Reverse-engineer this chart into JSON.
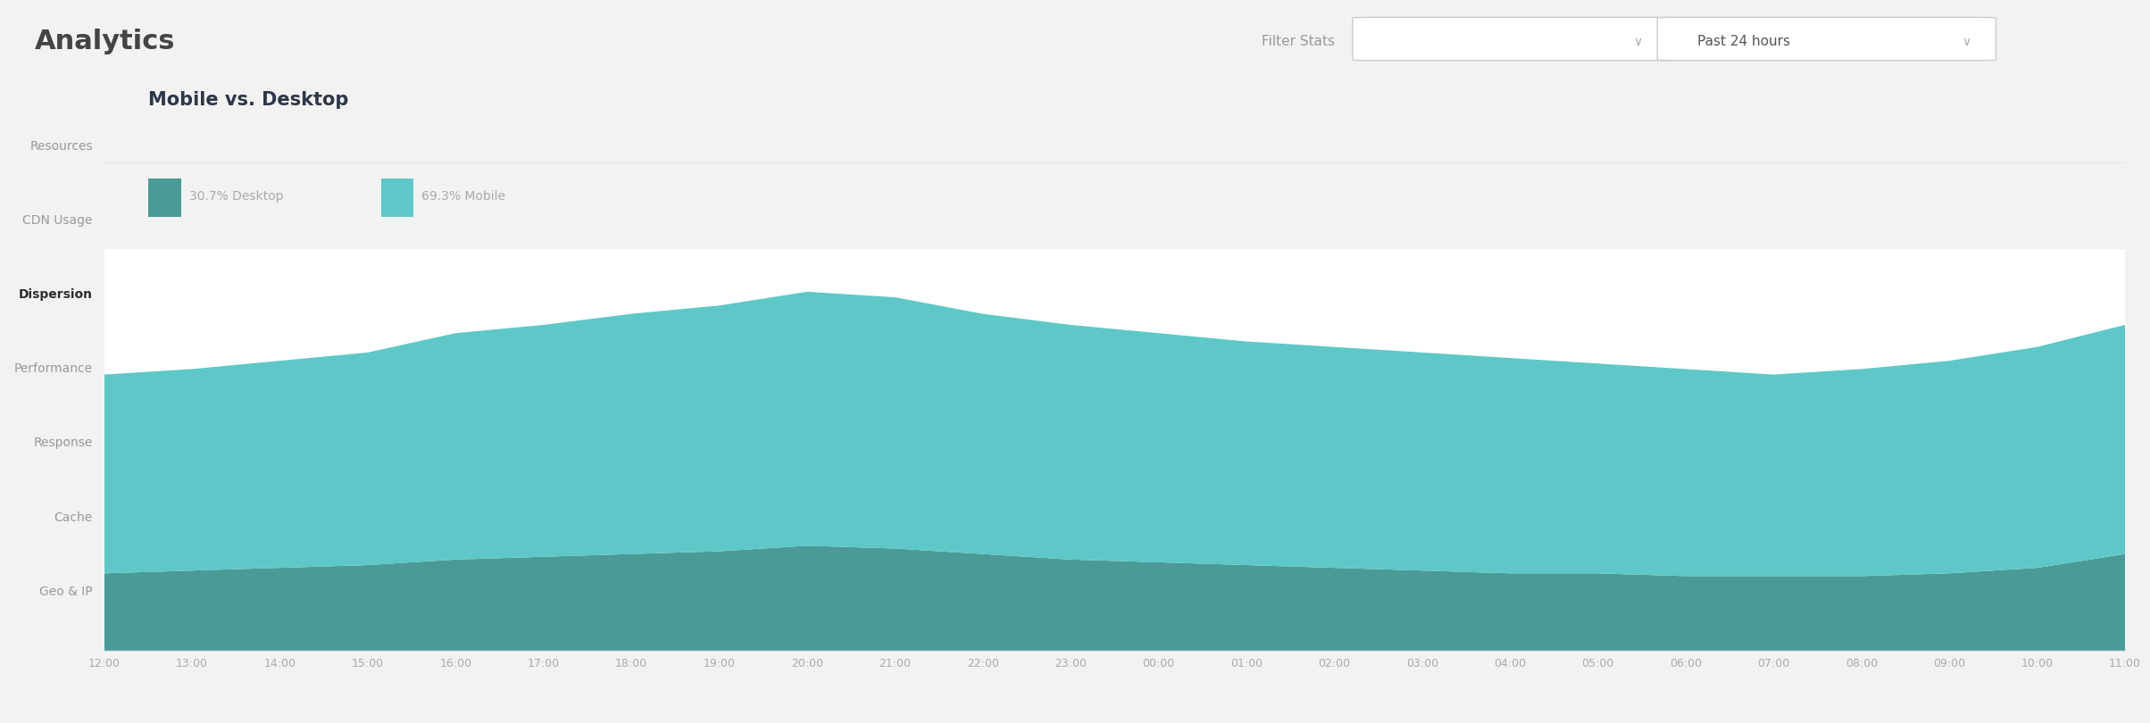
{
  "title": "Mobile vs. Desktop",
  "chart_bg": "#ffffff",
  "outer_bg": "#f2f2f2",
  "panel_bg": "#ffffff",
  "legend": [
    {
      "label": "30.7% Desktop",
      "color": "#4a9a97"
    },
    {
      "label": "69.3% Mobile",
      "color": "#5ec8c8"
    }
  ],
  "x_labels": [
    "12:00",
    "13:00",
    "14:00",
    "15:00",
    "16:00",
    "17:00",
    "18:00",
    "19:00",
    "20:00",
    "21:00",
    "22:00",
    "23:00",
    "00:00",
    "01:00",
    "02:00",
    "03:00",
    "04:00",
    "05:00",
    "06:00",
    "07:00",
    "08:00",
    "09:00",
    "10:00",
    "11:00"
  ],
  "desktop_values": [
    28,
    29,
    30,
    31,
    33,
    34,
    35,
    36,
    38,
    37,
    35,
    33,
    32,
    31,
    30,
    29,
    28,
    28,
    27,
    27,
    27,
    28,
    30,
    35
  ],
  "mobile_values": [
    72,
    73,
    75,
    77,
    82,
    84,
    87,
    89,
    92,
    91,
    87,
    85,
    83,
    81,
    80,
    79,
    78,
    76,
    75,
    73,
    75,
    77,
    80,
    83
  ],
  "sidebar_items": [
    "Resources",
    "CDN Usage",
    "Dispersion",
    "Performance",
    "Response",
    "Cache",
    "Geo & IP"
  ],
  "sidebar_active": "Dispersion",
  "header_title": "Analytics",
  "filter_label": "Filter Stats",
  "time_label": "Past 24 hours"
}
